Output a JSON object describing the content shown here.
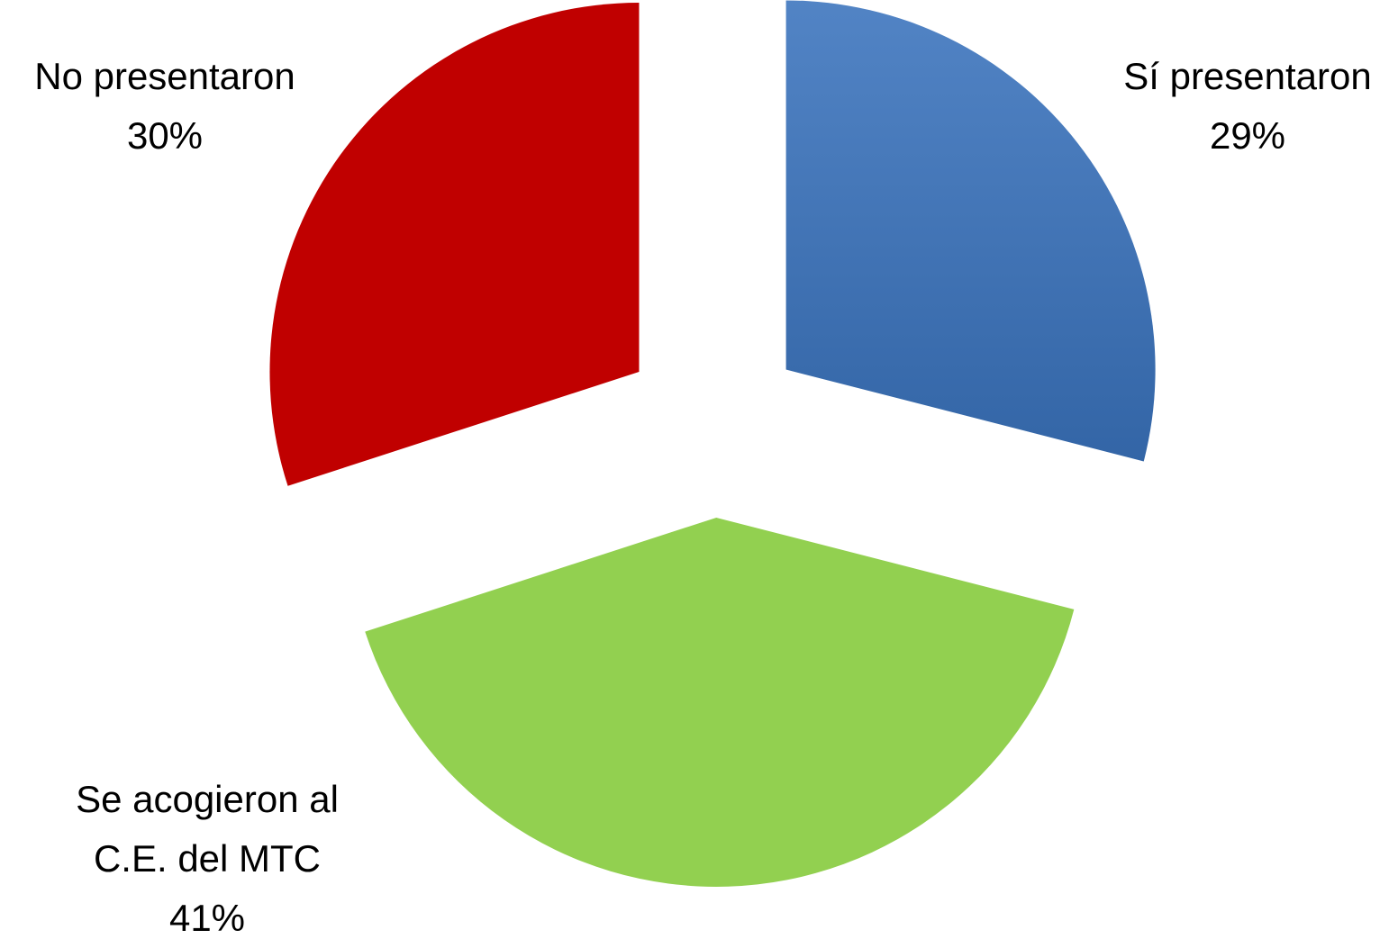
{
  "chart_data": {
    "type": "pie",
    "categories": [
      "Sí presentaron",
      "Se acogieron al C.E. del MTC",
      "No presentaron"
    ],
    "values": [
      29,
      41,
      30
    ],
    "value_labels": [
      "29%",
      "41%",
      "30%"
    ],
    "colors": [
      "#3a73bd",
      "#92d050",
      "#c00000"
    ]
  }
}
